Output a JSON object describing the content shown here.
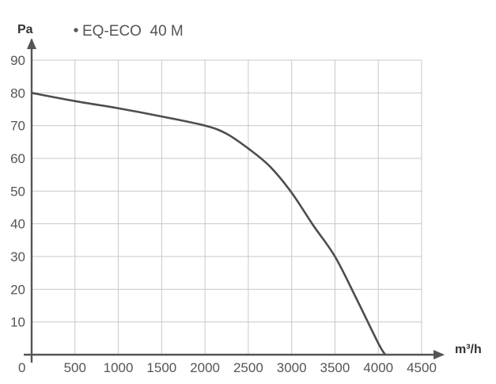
{
  "chart_data": {
    "type": "line",
    "title": "",
    "xlabel": "m³/h",
    "ylabel": "Pa",
    "xlim": [
      0,
      4500
    ],
    "ylim": [
      0,
      90
    ],
    "x_ticks": [
      500,
      1000,
      1500,
      2000,
      2500,
      3000,
      3500,
      4000,
      4500
    ],
    "y_ticks": [
      10,
      20,
      30,
      40,
      50,
      60,
      70,
      80,
      90
    ],
    "origin_label": "0",
    "grid": true,
    "legend_position": "top-left",
    "series": [
      {
        "name": "EQ-ECO  40 M",
        "color": "#4d4d4d",
        "x": [
          0,
          500,
          1000,
          1500,
          2000,
          2250,
          2500,
          2750,
          3000,
          3250,
          3500,
          3750,
          4000,
          4080
        ],
        "y": [
          80,
          77.5,
          75.3,
          72.8,
          70,
          67.5,
          63,
          57.5,
          49.5,
          39.5,
          30,
          17,
          3.5,
          0
        ]
      }
    ]
  }
}
